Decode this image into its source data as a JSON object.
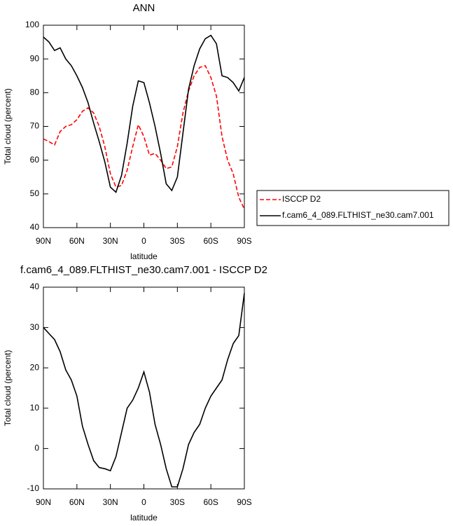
{
  "chart_data": [
    {
      "type": "line",
      "title": "ANN",
      "x_label": "latitude",
      "y_label": "Total cloud (percent)",
      "x": [
        90,
        85,
        80,
        75,
        70,
        65,
        60,
        55,
        50,
        45,
        40,
        35,
        30,
        25,
        20,
        15,
        10,
        5,
        0,
        -5,
        -10,
        -15,
        -20,
        -25,
        -30,
        -35,
        -40,
        -45,
        -50,
        -55,
        -60,
        -65,
        -70,
        -75,
        -80,
        -85,
        -90
      ],
      "series": [
        {
          "name": "ISCCP D2",
          "color": "#ff0000",
          "line_style": "dashed",
          "values": [
            66.3,
            65.5,
            64.5,
            68.5,
            70,
            70.5,
            72,
            74.5,
            75.5,
            74,
            70,
            64,
            56,
            52,
            52.5,
            57,
            64,
            70.5,
            67,
            61.5,
            62,
            60,
            57.5,
            58,
            64,
            74,
            80.5,
            85,
            87.5,
            88,
            84.5,
            79,
            67,
            60,
            56,
            49,
            45.5
          ]
        },
        {
          "name": "f.cam6_4_089.FLTHIST_ne30.cam7.001",
          "color": "#000000",
          "line_style": "solid",
          "values": [
            96.5,
            95,
            92.5,
            93.3,
            90,
            88,
            85,
            81.5,
            77,
            71,
            65.5,
            59.5,
            52,
            50.5,
            55.5,
            65,
            76,
            83.5,
            83,
            77,
            70,
            62,
            53,
            51,
            55,
            68,
            81,
            88,
            93,
            96,
            97,
            94.5,
            85,
            84.5,
            83,
            80.5,
            84.5
          ]
        }
      ],
      "xlim": [
        90,
        -90
      ],
      "xticks": [
        {
          "value": 90,
          "label": "90N"
        },
        {
          "value": 60,
          "label": "60N"
        },
        {
          "value": 30,
          "label": "30N"
        },
        0,
        {
          "value": -30,
          "label": "30S"
        },
        {
          "value": -60,
          "label": "60S"
        },
        {
          "value": -90,
          "label": "90S"
        }
      ],
      "ylim": [
        40,
        100
      ],
      "yticks": [
        40,
        50,
        60,
        70,
        80,
        90,
        100
      ],
      "legend": "outside-right"
    },
    {
      "type": "line",
      "title": "f.cam6_4_089.FLTHIST_ne30.cam7.001 - ISCCP D2",
      "x_label": "latitude",
      "y_label": "Total cloud (percent)",
      "x": [
        90,
        85,
        80,
        75,
        70,
        65,
        60,
        55,
        50,
        45,
        40,
        35,
        30,
        25,
        20,
        15,
        10,
        5,
        0,
        -5,
        -10,
        -15,
        -20,
        -25,
        -30,
        -35,
        -40,
        -45,
        -50,
        -55,
        -60,
        -65,
        -70,
        -75,
        -80,
        -85,
        -90
      ],
      "series": [
        {
          "color": "#000000",
          "line_style": "solid",
          "values": [
            30,
            28.5,
            27,
            24,
            19.5,
            17,
            13,
            5.5,
            1,
            -3,
            -4.7,
            -5,
            -5.5,
            -2,
            4,
            10,
            12,
            15,
            19,
            14,
            6,
            1,
            -5,
            -9.5,
            -9.5,
            -5,
            1,
            4,
            6,
            10,
            13,
            15,
            17,
            22,
            26,
            28,
            38.5
          ]
        }
      ],
      "xlim": [
        90,
        -90
      ],
      "xticks": [
        {
          "value": 90,
          "label": "90N"
        },
        {
          "value": 60,
          "label": "60N"
        },
        {
          "value": 30,
          "label": "30N"
        },
        0,
        {
          "value": -30,
          "label": "30S"
        },
        {
          "value": -60,
          "label": "60S"
        },
        {
          "value": -90,
          "label": "90S"
        }
      ],
      "ylim": [
        -10,
        40
      ],
      "yticks": [
        -10,
        0,
        10,
        20,
        30,
        40
      ]
    }
  ]
}
